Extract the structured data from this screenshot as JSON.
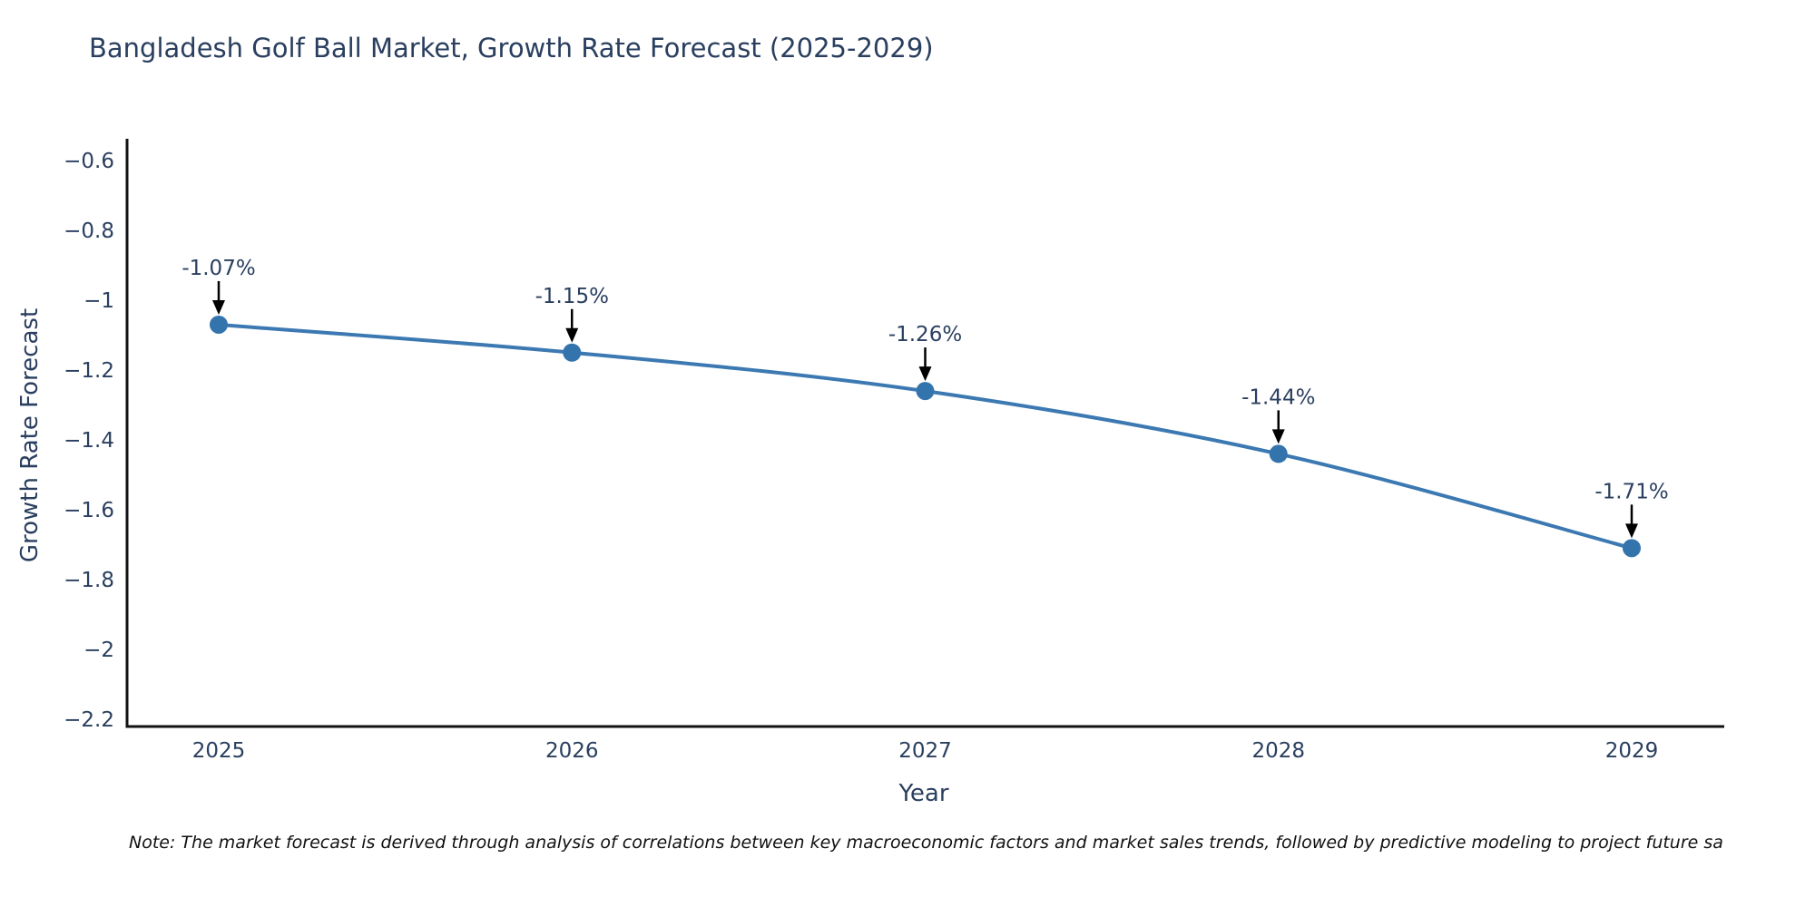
{
  "title": "Bangladesh Golf Ball Market, Growth Rate Forecast (2025-2029)",
  "note": "Note: The market forecast is derived through analysis of correlations between key macroeconomic factors and market sales trends, followed by predictive modeling to project future sa",
  "chart_data": {
    "type": "line",
    "title": "Bangladesh Golf Ball Market, Growth Rate Forecast (2025-2029)",
    "xlabel": "Year",
    "ylabel": "Growth Rate Forecast",
    "x": [
      2025,
      2026,
      2027,
      2028,
      2029
    ],
    "values": [
      -1.07,
      -1.15,
      -1.26,
      -1.44,
      -1.71
    ],
    "point_labels": [
      "-1.07%",
      "-1.15%",
      "-1.26%",
      "-1.44%",
      "-1.71%"
    ],
    "xtick_labels": [
      "2025",
      "2026",
      "2027",
      "2028",
      "2029"
    ],
    "yticks": [
      -0.6,
      -0.8,
      -1.0,
      -1.2,
      -1.4,
      -1.6,
      -1.8,
      -2.0,
      -2.2
    ],
    "ytick_labels": [
      "−0.6",
      "−0.8",
      "−1",
      "−1.2",
      "−1.4",
      "−1.6",
      "−1.8",
      "−2",
      "−2.2"
    ],
    "ylim": [
      -2.2,
      -0.55
    ],
    "grid": false,
    "legend": "none",
    "line_shape": "spline",
    "colors": {
      "line": "#3c79b2",
      "marker": "#3474ad",
      "axis_line": "#121212",
      "tick_text": "#2a3f5f",
      "annotation_text": "#2a3f5f",
      "arrow": "#000000"
    }
  }
}
